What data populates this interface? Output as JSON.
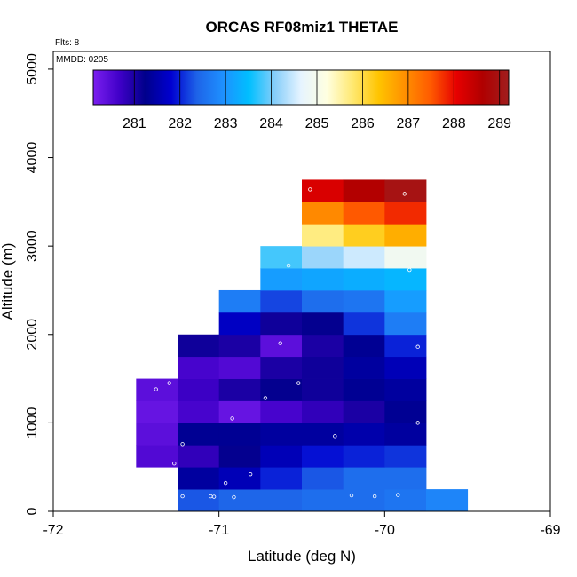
{
  "chart_data": {
    "type": "heatmap",
    "title": "ORCAS RF08miz1 THETAE",
    "xlabel": "Latitude (deg N)",
    "ylabel": "Altitude (m)",
    "notes": {
      "flights": "Flts: 8",
      "date": "MMDD: 0205"
    },
    "xlim": [
      -72,
      -69
    ],
    "ylim": [
      0,
      5200
    ],
    "x_ticks": [
      -72,
      -71,
      -70,
      -69
    ],
    "y_ticks": [
      0,
      1000,
      2000,
      3000,
      4000,
      5000
    ],
    "colorbar": {
      "min": 280.1,
      "max": 289.2,
      "ticks": [
        281,
        282,
        283,
        284,
        285,
        286,
        287,
        288,
        289
      ],
      "colors": [
        "#7B1FF0",
        "#4000C8",
        "#00008B",
        "#0000D0",
        "#1E64E8",
        "#1E90FF",
        "#00BFFF",
        "#87CEFA",
        "#E6F4FF",
        "#FFFFE0",
        "#FFE870",
        "#FFC400",
        "#FF9000",
        "#FF5A00",
        "#E60000",
        "#B00000",
        "#A01E1E"
      ]
    },
    "cell_width_deg": 0.25,
    "cell_height_m": 250,
    "cells": [
      {
        "x0": -71.25,
        "y0": 0,
        "v": 282.3
      },
      {
        "x0": -71.0,
        "y0": 0,
        "v": 282.4
      },
      {
        "x0": -70.75,
        "y0": 0,
        "v": 282.4
      },
      {
        "x0": -70.5,
        "y0": 0,
        "v": 282.5
      },
      {
        "x0": -70.25,
        "y0": 0,
        "v": 282.5
      },
      {
        "x0": -70.0,
        "y0": 0,
        "v": 282.6
      },
      {
        "x0": -69.75,
        "y0": 0,
        "v": 282.8
      },
      {
        "x0": -71.25,
        "y0": 250,
        "v": 281.4
      },
      {
        "x0": -71.0,
        "y0": 250,
        "v": 281.6
      },
      {
        "x0": -70.75,
        "y0": 250,
        "v": 282.0
      },
      {
        "x0": -70.5,
        "y0": 250,
        "v": 282.3
      },
      {
        "x0": -70.25,
        "y0": 250,
        "v": 282.5
      },
      {
        "x0": -70.0,
        "y0": 250,
        "v": 282.5
      },
      {
        "x0": -71.5,
        "y0": 500,
        "v": 280.5
      },
      {
        "x0": -71.25,
        "y0": 500,
        "v": 280.8
      },
      {
        "x0": -71.0,
        "y0": 500,
        "v": 281.2
      },
      {
        "x0": -70.75,
        "y0": 500,
        "v": 281.6
      },
      {
        "x0": -70.5,
        "y0": 500,
        "v": 281.9
      },
      {
        "x0": -70.25,
        "y0": 500,
        "v": 282.0
      },
      {
        "x0": -70.0,
        "y0": 500,
        "v": 282.1
      },
      {
        "x0": -71.5,
        "y0": 750,
        "v": 280.4
      },
      {
        "x0": -71.25,
        "y0": 750,
        "v": 281.3
      },
      {
        "x0": -71.0,
        "y0": 750,
        "v": 281.3
      },
      {
        "x0": -70.75,
        "y0": 750,
        "v": 281.4
      },
      {
        "x0": -70.5,
        "y0": 750,
        "v": 281.4
      },
      {
        "x0": -70.25,
        "y0": 750,
        "v": 281.5
      },
      {
        "x0": -70.0,
        "y0": 750,
        "v": 281.4
      },
      {
        "x0": -71.5,
        "y0": 1000,
        "v": 280.3
      },
      {
        "x0": -71.25,
        "y0": 1000,
        "v": 280.6
      },
      {
        "x0": -71.0,
        "y0": 1000,
        "v": 280.3
      },
      {
        "x0": -70.75,
        "y0": 1000,
        "v": 280.6
      },
      {
        "x0": -70.5,
        "y0": 1000,
        "v": 280.8
      },
      {
        "x0": -70.25,
        "y0": 1000,
        "v": 281.0
      },
      {
        "x0": -70.0,
        "y0": 1000,
        "v": 281.3
      },
      {
        "x0": -71.5,
        "y0": 1250,
        "v": 280.4
      },
      {
        "x0": -71.25,
        "y0": 1250,
        "v": 280.7
      },
      {
        "x0": -71.0,
        "y0": 1250,
        "v": 281.0
      },
      {
        "x0": -70.75,
        "y0": 1250,
        "v": 281.2
      },
      {
        "x0": -70.5,
        "y0": 1250,
        "v": 281.1
      },
      {
        "x0": -70.25,
        "y0": 1250,
        "v": 281.3
      },
      {
        "x0": -70.0,
        "y0": 1250,
        "v": 281.4
      },
      {
        "x0": -71.25,
        "y0": 1500,
        "v": 280.6
      },
      {
        "x0": -71.0,
        "y0": 1500,
        "v": 280.5
      },
      {
        "x0": -70.75,
        "y0": 1500,
        "v": 281.0
      },
      {
        "x0": -70.5,
        "y0": 1500,
        "v": 281.1
      },
      {
        "x0": -70.25,
        "y0": 1500,
        "v": 281.4
      },
      {
        "x0": -70.0,
        "y0": 1500,
        "v": 281.6
      },
      {
        "x0": -71.25,
        "y0": 1750,
        "v": 281.1
      },
      {
        "x0": -71.0,
        "y0": 1750,
        "v": 281.0
      },
      {
        "x0": -70.75,
        "y0": 1750,
        "v": 280.4
      },
      {
        "x0": -70.5,
        "y0": 1750,
        "v": 281.0
      },
      {
        "x0": -70.25,
        "y0": 1750,
        "v": 281.3
      },
      {
        "x0": -70.0,
        "y0": 1750,
        "v": 282.0
      },
      {
        "x0": -71.0,
        "y0": 2000,
        "v": 281.7
      },
      {
        "x0": -70.75,
        "y0": 2000,
        "v": 281.1
      },
      {
        "x0": -70.5,
        "y0": 2000,
        "v": 281.2
      },
      {
        "x0": -70.25,
        "y0": 2000,
        "v": 282.1
      },
      {
        "x0": -70.0,
        "y0": 2000,
        "v": 282.7
      },
      {
        "x0": -71.0,
        "y0": 2250,
        "v": 282.7
      },
      {
        "x0": -70.75,
        "y0": 2250,
        "v": 282.2
      },
      {
        "x0": -70.5,
        "y0": 2250,
        "v": 282.5
      },
      {
        "x0": -70.25,
        "y0": 2250,
        "v": 282.6
      },
      {
        "x0": -70.0,
        "y0": 2250,
        "v": 283.1
      },
      {
        "x0": -70.75,
        "y0": 2500,
        "v": 283.1
      },
      {
        "x0": -70.5,
        "y0": 2500,
        "v": 283.2
      },
      {
        "x0": -70.25,
        "y0": 2500,
        "v": 283.3
      },
      {
        "x0": -70.0,
        "y0": 2500,
        "v": 283.4
      },
      {
        "x0": -70.75,
        "y0": 2750,
        "v": 283.8
      },
      {
        "x0": -70.5,
        "y0": 2750,
        "v": 284.2
      },
      {
        "x0": -70.25,
        "y0": 2750,
        "v": 284.5
      },
      {
        "x0": -70.0,
        "y0": 2750,
        "v": 284.9
      },
      {
        "x0": -70.5,
        "y0": 3000,
        "v": 285.7
      },
      {
        "x0": -70.25,
        "y0": 3000,
        "v": 286.2
      },
      {
        "x0": -70.0,
        "y0": 3000,
        "v": 286.6
      },
      {
        "x0": -70.5,
        "y0": 3250,
        "v": 287.0
      },
      {
        "x0": -70.25,
        "y0": 3250,
        "v": 287.5
      },
      {
        "x0": -70.0,
        "y0": 3250,
        "v": 287.8
      },
      {
        "x0": -70.5,
        "y0": 3500,
        "v": 288.2
      },
      {
        "x0": -70.25,
        "y0": 3500,
        "v": 288.6
      },
      {
        "x0": -70.0,
        "y0": 3500,
        "v": 289.0
      }
    ],
    "sample_points": [
      {
        "x": -71.3,
        "y": 1450
      },
      {
        "x": -71.38,
        "y": 1380
      },
      {
        "x": -71.27,
        "y": 540
      },
      {
        "x": -71.22,
        "y": 760
      },
      {
        "x": -71.22,
        "y": 170
      },
      {
        "x": -71.05,
        "y": 170
      },
      {
        "x": -71.03,
        "y": 165
      },
      {
        "x": -70.96,
        "y": 320
      },
      {
        "x": -70.91,
        "y": 160
      },
      {
        "x": -70.81,
        "y": 420
      },
      {
        "x": -70.92,
        "y": 1050
      },
      {
        "x": -70.72,
        "y": 1280
      },
      {
        "x": -70.63,
        "y": 1900
      },
      {
        "x": -70.52,
        "y": 1450
      },
      {
        "x": -70.45,
        "y": 3640
      },
      {
        "x": -70.58,
        "y": 2780
      },
      {
        "x": -70.3,
        "y": 850
      },
      {
        "x": -70.2,
        "y": 180
      },
      {
        "x": -70.06,
        "y": 170
      },
      {
        "x": -69.92,
        "y": 185
      },
      {
        "x": -69.8,
        "y": 1000
      },
      {
        "x": -69.8,
        "y": 1860
      },
      {
        "x": -69.85,
        "y": 2730
      },
      {
        "x": -69.88,
        "y": 3590
      }
    ]
  }
}
